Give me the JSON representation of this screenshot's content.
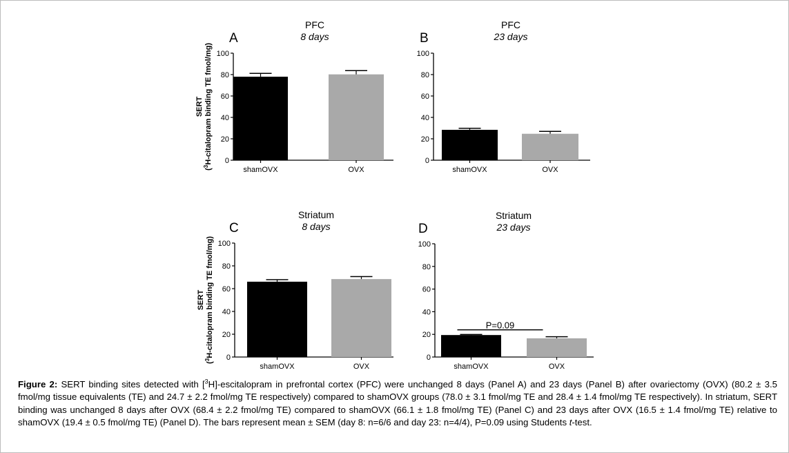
{
  "figure": {
    "caption": {
      "label": "Figure 2:",
      "text_1": " SERT binding sites detected with [",
      "sup": "3",
      "text_2": "H]-escitalopram in prefrontal cortex (PFC) were unchanged 8 days (Panel A) and 23 days (Panel B) after ovariectomy (OVX) (80.2 ± 3.5 fmol/mg tissue equivalents (TE) and 24.7 ± 2.2 fmol/mg TE respectively) compared to shamOVX groups (78.0 ± 3.1 fmol/mg TE and 28.4 ± 1.4 fmol/mg TE respectively). In striatum, SERT binding was unchanged 8 days after OVX (68.4 ± 2.2 fmol/mg TE) compared to shamOVX (66.1 ± 1.8 fmol/mg TE) (Panel C) and 23 days after OVX (16.5 ± 1.4 fmol/mg TE) relative to shamOVX (19.4 ± 0.5 fmol/mg TE) (Panel D). The bars represent mean ± SEM (day 8: n=6/6 and day 23: n=4/4), P=0.09 using Students ",
      "italic": "t",
      "text_3": "-test."
    }
  },
  "chart_data": [
    {
      "type": "bar",
      "panel_letter": "A",
      "title": "PFC",
      "subtitle": "8 days",
      "ylabel_line1": "SERT",
      "ylabel_line2_sup": "3",
      "ylabel_line2": "H-citalopram binding TE fmol/mg)",
      "ylabel_prefix": "(",
      "categories": [
        "shamOVX",
        "OVX"
      ],
      "values": [
        78.0,
        80.2
      ],
      "errors": [
        3.1,
        3.5
      ],
      "bar_colors": [
        "#000000",
        "#a9a9a9"
      ],
      "ylim": [
        0,
        100
      ],
      "yticks": [
        "0",
        "20",
        "40",
        "60",
        "80",
        "100"
      ],
      "annotation": ""
    },
    {
      "type": "bar",
      "panel_letter": "B",
      "title": "PFC",
      "subtitle": "23 days",
      "ylabel_line1": "",
      "ylabel_line2": "",
      "categories": [
        "shamOVX",
        "OVX"
      ],
      "values": [
        28.4,
        24.7
      ],
      "errors": [
        1.4,
        2.2
      ],
      "bar_colors": [
        "#000000",
        "#a9a9a9"
      ],
      "ylim": [
        0,
        100
      ],
      "yticks": [
        "0",
        "20",
        "40",
        "60",
        "80",
        "100"
      ],
      "annotation": ""
    },
    {
      "type": "bar",
      "panel_letter": "C",
      "title": "Striatum",
      "subtitle": "8 days",
      "ylabel_line1": "SERT",
      "ylabel_line2_sup": "3",
      "ylabel_line2": "H-citalopram binding TE fmol/mg)",
      "ylabel_prefix": "(",
      "categories": [
        "shamOVX",
        "OVX"
      ],
      "values": [
        66.1,
        68.4
      ],
      "errors": [
        1.8,
        2.2
      ],
      "bar_colors": [
        "#000000",
        "#a9a9a9"
      ],
      "ylim": [
        0,
        100
      ],
      "yticks": [
        "0",
        "20",
        "40",
        "60",
        "80",
        "100"
      ],
      "annotation": ""
    },
    {
      "type": "bar",
      "panel_letter": "D",
      "title": "Striatum",
      "subtitle": "23 days",
      "ylabel_line1": "",
      "ylabel_line2": "",
      "categories": [
        "shamOVX",
        "OVX"
      ],
      "values": [
        19.4,
        16.5
      ],
      "errors": [
        0.5,
        1.4
      ],
      "bar_colors": [
        "#000000",
        "#a9a9a9"
      ],
      "ylim": [
        0,
        100
      ],
      "yticks": [
        "0",
        "20",
        "40",
        "60",
        "80",
        "100"
      ],
      "annotation": "P=0.09"
    }
  ]
}
